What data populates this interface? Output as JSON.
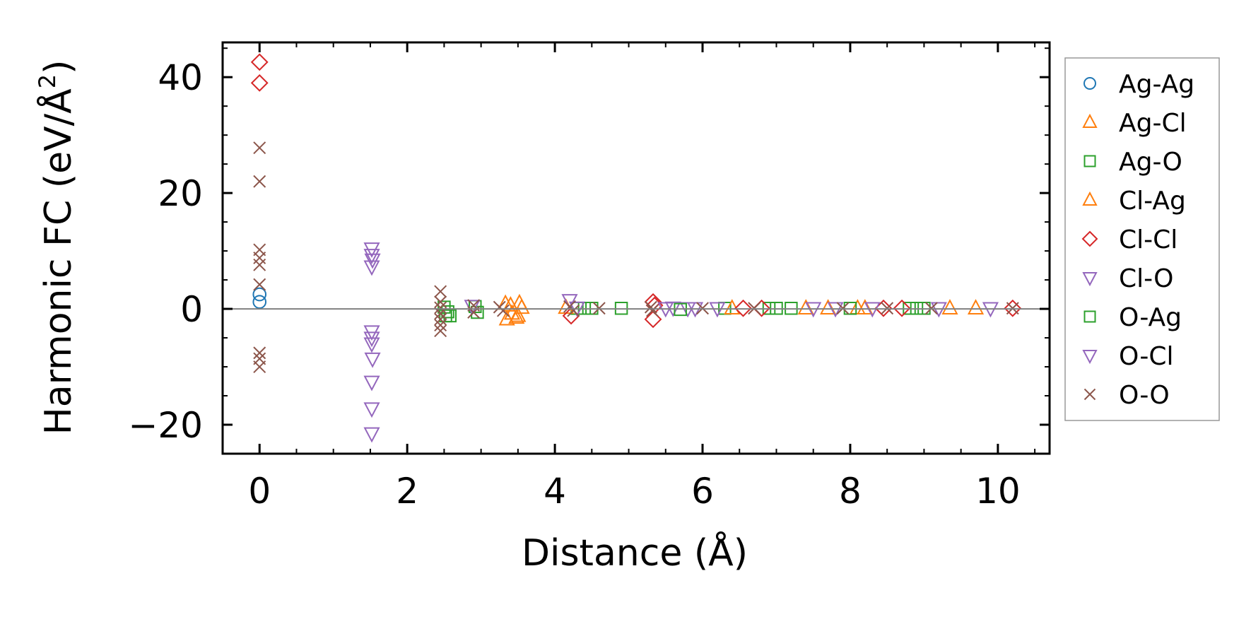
{
  "chart_data": {
    "type": "scatter",
    "title": "",
    "xlabel": "Distance (Å)",
    "ylabel_main": "Harmonic FC (eV/Å",
    "ylabel_sup": "2",
    "ylabel_close": ")",
    "xlim": [
      -0.5,
      10.7
    ],
    "ylim": [
      -25,
      46
    ],
    "x_ticks": [
      0,
      2,
      4,
      6,
      8,
      10
    ],
    "x_tick_labels": [
      "0",
      "2",
      "4",
      "6",
      "8",
      "10"
    ],
    "y_ticks": [
      -20,
      0,
      20,
      40
    ],
    "y_tick_labels": [
      "−20",
      "0",
      "20",
      "40"
    ],
    "zero_line": true,
    "grid": false,
    "legend_position": "outside-right",
    "series": [
      {
        "name": "Ag-Ag",
        "marker": "circle",
        "color": "#1f77b4",
        "points": [
          [
            0,
            1.2
          ],
          [
            0,
            2.5
          ]
        ]
      },
      {
        "name": "Ag-Cl",
        "marker": "triangle-up",
        "color": "#ff7f0e",
        "points": [
          [
            3.35,
            -1.8
          ],
          [
            3.4,
            0.6
          ],
          [
            3.42,
            -0.8
          ],
          [
            3.5,
            -1.2
          ],
          [
            3.52,
            1.0
          ],
          [
            3.55,
            0.2
          ],
          [
            7.7,
            0.1
          ],
          [
            8.1,
            0.1
          ],
          [
            9.35,
            0.1
          ],
          [
            9.7,
            0.1
          ]
        ]
      },
      {
        "name": "Ag-O",
        "marker": "square",
        "color": "#2ca02c",
        "points": [
          [
            2.5,
            0.3
          ],
          [
            2.55,
            -0.5
          ],
          [
            2.58,
            -1.2
          ],
          [
            2.92,
            0.4
          ],
          [
            4.3,
            0.1
          ],
          [
            4.5,
            0.1
          ],
          [
            4.9,
            0.1
          ],
          [
            6.3,
            0.1
          ],
          [
            6.9,
            0.1
          ],
          [
            7.2,
            0.1
          ],
          [
            8.0,
            0.1
          ],
          [
            8.8,
            0.1
          ],
          [
            9.0,
            0.1
          ]
        ]
      },
      {
        "name": "Cl-Ag",
        "marker": "triangle-up",
        "color": "#ff7f0e",
        "points": [
          [
            3.33,
            0.9
          ],
          [
            3.48,
            -1.5
          ],
          [
            4.15,
            0.2
          ],
          [
            6.4,
            0.1
          ],
          [
            7.4,
            0.1
          ],
          [
            8.2,
            0.1
          ]
        ]
      },
      {
        "name": "Cl-Cl",
        "marker": "diamond",
        "color": "#d62728",
        "points": [
          [
            0,
            39.0
          ],
          [
            0,
            42.6
          ],
          [
            4.22,
            -1.2
          ],
          [
            5.33,
            -1.8
          ],
          [
            5.35,
            0.6
          ],
          [
            5.33,
            1.2
          ],
          [
            6.55,
            0.1
          ],
          [
            6.8,
            0.1
          ],
          [
            8.45,
            0.1
          ],
          [
            8.7,
            0.1
          ],
          [
            10.2,
            0.1
          ]
        ]
      },
      {
        "name": "Cl-O",
        "marker": "triangle-down",
        "color": "#9467bd",
        "points": [
          [
            1.52,
            10.4
          ],
          [
            1.52,
            9.3
          ],
          [
            1.53,
            8.5
          ],
          [
            1.52,
            7.3
          ],
          [
            1.52,
            -3.9
          ],
          [
            1.52,
            -5.0
          ],
          [
            1.52,
            -6.0
          ],
          [
            1.53,
            -8.6
          ],
          [
            1.52,
            -12.6
          ],
          [
            1.52,
            -17.2
          ],
          [
            1.52,
            -21.5
          ],
          [
            4.2,
            1.5
          ],
          [
            5.6,
            0.2
          ],
          [
            5.8,
            0.1
          ],
          [
            7.5,
            0.1
          ],
          [
            8.3,
            0.1
          ]
        ]
      },
      {
        "name": "O-Ag",
        "marker": "square",
        "color": "#2ca02c",
        "points": [
          [
            2.52,
            -1.2
          ],
          [
            2.95,
            -0.6
          ],
          [
            4.4,
            0.1
          ],
          [
            5.7,
            -0.1
          ],
          [
            7.0,
            0.1
          ],
          [
            8.9,
            0.1
          ]
        ]
      },
      {
        "name": "O-Cl",
        "marker": "triangle-down",
        "color": "#9467bd",
        "points": [
          [
            2.88,
            0.5
          ],
          [
            4.3,
            0.2
          ],
          [
            5.5,
            0.1
          ],
          [
            5.9,
            0.1
          ],
          [
            6.2,
            0.1
          ],
          [
            7.8,
            0.1
          ],
          [
            9.2,
            0.1
          ],
          [
            9.9,
            0.1
          ]
        ]
      },
      {
        "name": "O-O",
        "marker": "x",
        "color": "#8c564b",
        "points": [
          [
            0,
            27.8
          ],
          [
            0,
            22.0
          ],
          [
            0,
            10.2
          ],
          [
            0,
            8.8
          ],
          [
            0,
            7.6
          ],
          [
            0,
            4.2
          ],
          [
            0,
            -7.6
          ],
          [
            0,
            -8.6
          ],
          [
            0,
            -10.0
          ],
          [
            2.45,
            3.0
          ],
          [
            2.45,
            1.2
          ],
          [
            2.45,
            0.2
          ],
          [
            2.45,
            -0.8
          ],
          [
            2.45,
            -1.8
          ],
          [
            2.45,
            -2.8
          ],
          [
            2.45,
            -3.8
          ],
          [
            2.9,
            0.6
          ],
          [
            2.9,
            -0.6
          ],
          [
            3.25,
            0.3
          ],
          [
            3.3,
            -0.3
          ],
          [
            4.2,
            0.4
          ],
          [
            4.25,
            -0.3
          ],
          [
            4.6,
            0.1
          ],
          [
            5.3,
            0.3
          ],
          [
            5.32,
            -0.3
          ],
          [
            6.0,
            0.1
          ],
          [
            6.7,
            0.1
          ],
          [
            7.9,
            0.1
          ],
          [
            8.5,
            0.1
          ],
          [
            9.1,
            0.1
          ],
          [
            10.2,
            0.1
          ]
        ]
      }
    ]
  }
}
